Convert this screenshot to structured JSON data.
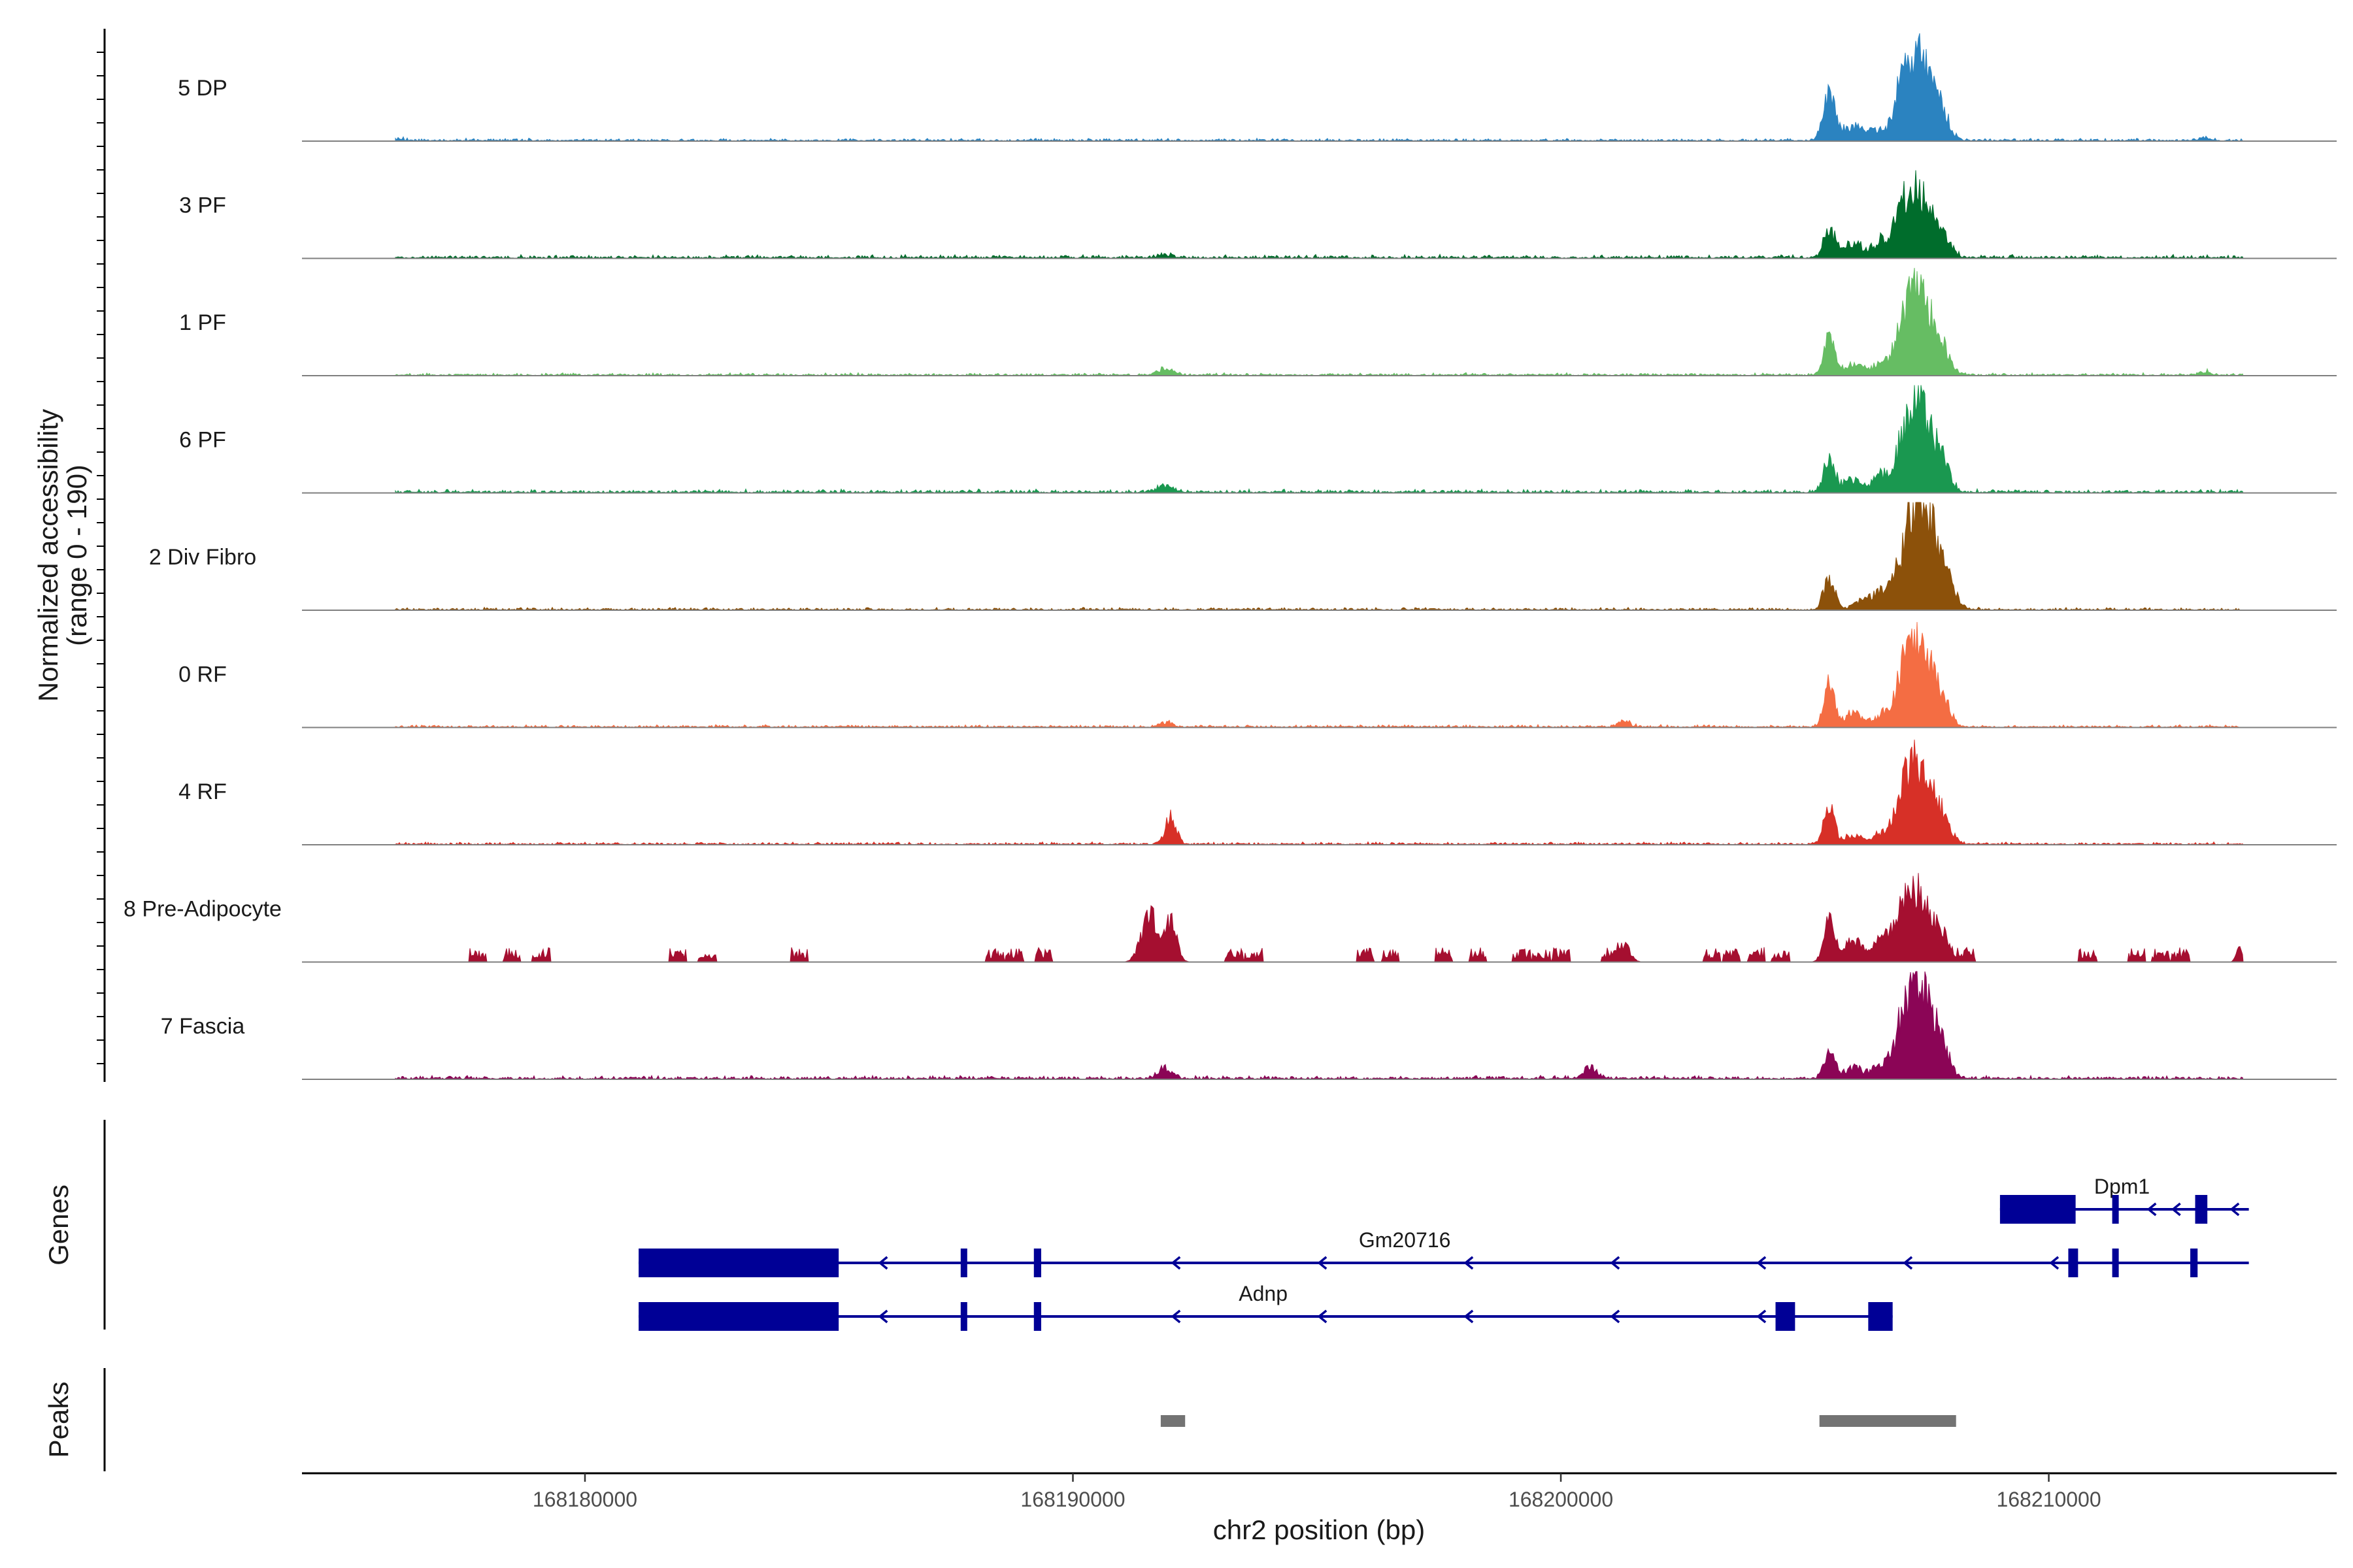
{
  "chart_data": {
    "type": "area",
    "title": "",
    "xlabel": "chr2 position (bp)",
    "ylabel_line1": "Normalized accessibility",
    "ylabel_line2": "(range 0 - 190)",
    "ylim": [
      0,
      190
    ],
    "xlim": [
      168174200,
      168215900
    ],
    "xticks": [
      168180000,
      168190000,
      168200000,
      168210000
    ],
    "tick_labels": [
      "168180000",
      "168190000",
      "168200000",
      "168210000"
    ],
    "genes_label": "Genes",
    "peaks_label": "Peaks",
    "tracks": [
      {
        "name": "5 DP",
        "color": "#2b83c0",
        "background": 3,
        "bumps": [
          [
            168176200,
            4,
            100
          ],
          [
            168205500,
            95,
            120
          ],
          [
            168206000,
            28,
            200
          ],
          [
            168206500,
            20,
            150
          ],
          [
            168206900,
            18,
            120
          ],
          [
            168207000,
            65,
            160
          ],
          [
            168207350,
            160,
            230
          ],
          [
            168207800,
            48,
            160
          ],
          [
            168213200,
            6,
            100
          ]
        ]
      },
      {
        "name": "3 PF",
        "color": "#006d2c",
        "background": 4,
        "bumps": [
          [
            168191900,
            5,
            150
          ],
          [
            168205500,
            55,
            110
          ],
          [
            168206000,
            28,
            200
          ],
          [
            168206600,
            32,
            180
          ],
          [
            168207000,
            75,
            150
          ],
          [
            168207350,
            120,
            220
          ],
          [
            168207800,
            42,
            180
          ]
        ]
      },
      {
        "name": "1 PF",
        "color": "#66bd63",
        "background": 3,
        "bumps": [
          [
            168191900,
            12,
            160
          ],
          [
            168205500,
            72,
            110
          ],
          [
            168206000,
            20,
            200
          ],
          [
            168206600,
            22,
            180
          ],
          [
            168207000,
            68,
            160
          ],
          [
            168207350,
            165,
            220
          ],
          [
            168207800,
            48,
            170
          ],
          [
            168213200,
            7,
            100
          ]
        ]
      },
      {
        "name": "6 PF",
        "color": "#1a9850",
        "background": 4,
        "bumps": [
          [
            168191900,
            12,
            160
          ],
          [
            168205500,
            68,
            110
          ],
          [
            168206000,
            22,
            200
          ],
          [
            168206600,
            30,
            180
          ],
          [
            168207000,
            62,
            160
          ],
          [
            168207350,
            165,
            220
          ],
          [
            168207800,
            55,
            170
          ]
        ]
      },
      {
        "name": "2 Div Fibro",
        "color": "#8c510a",
        "background": 3,
        "bumps": [
          [
            168205500,
            62,
            110
          ],
          [
            168206300,
            20,
            250
          ],
          [
            168206800,
            45,
            220
          ],
          [
            168207200,
            80,
            200
          ],
          [
            168207450,
            178,
            260
          ],
          [
            168207900,
            50,
            180
          ]
        ]
      },
      {
        "name": "0 RF",
        "color": "#f46d43",
        "background": 3,
        "bumps": [
          [
            168191900,
            8,
            120
          ],
          [
            168201300,
            10,
            120
          ],
          [
            168205500,
            82,
            110
          ],
          [
            168206000,
            25,
            200
          ],
          [
            168206600,
            22,
            180
          ],
          [
            168207000,
            68,
            160
          ],
          [
            168207350,
            165,
            230
          ],
          [
            168207800,
            50,
            170
          ]
        ]
      },
      {
        "name": "4 RF",
        "color": "#d73027",
        "background": 3,
        "bumps": [
          [
            168192000,
            50,
            110
          ],
          [
            168205500,
            65,
            110
          ],
          [
            168206000,
            15,
            200
          ],
          [
            168206600,
            22,
            180
          ],
          [
            168207000,
            62,
            160
          ],
          [
            168207350,
            152,
            230
          ],
          [
            168207800,
            48,
            170
          ]
        ]
      },
      {
        "name": "8 Pre-Adipocyte",
        "color": "#a50f30",
        "background": 0,
        "bumps": [
          [
            168191600,
            88,
            120
          ],
          [
            168192000,
            80,
            120
          ],
          [
            168191400,
            28,
            120
          ],
          [
            168201300,
            32,
            120
          ],
          [
            168205500,
            75,
            110
          ],
          [
            168206000,
            40,
            200
          ],
          [
            168206600,
            45,
            180
          ],
          [
            168207000,
            80,
            160
          ],
          [
            168207350,
            125,
            220
          ],
          [
            168207800,
            52,
            170
          ],
          [
            168213900,
            25,
            60
          ]
        ],
        "islands": [
          168177800,
          168178500,
          168179100,
          168181900,
          168182500,
          168184400,
          168188400,
          168188800,
          168189400,
          168193300,
          168193700,
          168196000,
          168196500,
          168197600,
          168198300,
          168199200,
          168199600,
          168200000,
          168201000,
          168203100,
          168203500,
          168204000,
          168204500,
          168208300,
          168210800,
          168211800,
          168212300,
          168212700
        ]
      },
      {
        "name": "7 Fascia",
        "color": "#8b0556",
        "background": 4,
        "bumps": [
          [
            168191900,
            20,
            140
          ],
          [
            168200600,
            22,
            140
          ],
          [
            168205500,
            52,
            110
          ],
          [
            168206000,
            18,
            200
          ],
          [
            168206600,
            28,
            180
          ],
          [
            168207000,
            72,
            160
          ],
          [
            168207350,
            175,
            230
          ],
          [
            168207800,
            55,
            170
          ]
        ]
      }
    ],
    "genes": [
      {
        "name": "Dpm1",
        "start": 168209000,
        "end": 168214100,
        "row": 0,
        "label_pos": 168211500,
        "exons": [
          [
            168209000,
            168210550
          ],
          [
            168211300,
            168211400
          ],
          [
            168213000,
            168213250
          ]
        ],
        "arrows": [
          168210500,
          168212100,
          168212600,
          168213800
        ]
      },
      {
        "name": "Gm20716",
        "start": 168181100,
        "end": 168214100,
        "row": 1,
        "label_pos": 168196800,
        "exons": [
          [
            168181100,
            168185200
          ],
          [
            168187700,
            168187800
          ],
          [
            168189200,
            168189350
          ],
          [
            168210400,
            168210600
          ],
          [
            168211300,
            168211400
          ],
          [
            168212900,
            168213050
          ]
        ]
      },
      {
        "name": "Adnp",
        "start": 168181100,
        "end": 168206800,
        "row": 2,
        "label_pos": 168193900,
        "exons": [
          [
            168181100,
            168185200
          ],
          [
            168187700,
            168187800
          ],
          [
            168189200,
            168189350
          ],
          [
            168204400,
            168204800
          ],
          [
            168206300,
            168206800
          ]
        ]
      }
    ],
    "peaks": [
      [
        168191800,
        168192300
      ],
      [
        168205300,
        168208100
      ]
    ]
  }
}
